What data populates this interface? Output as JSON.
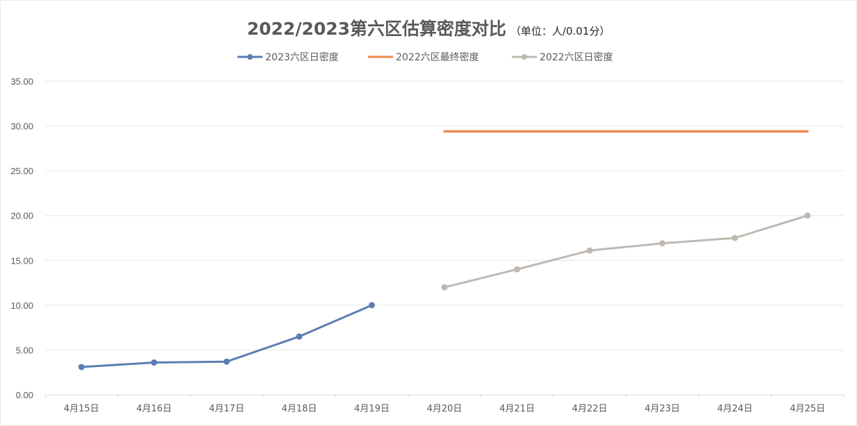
{
  "chart_data": {
    "type": "line",
    "title": "2022/2023第六区估算密度对比",
    "subtitle": "（单位：人/0.01分）",
    "categories": [
      "4月15日",
      "4月16日",
      "4月17日",
      "4月18日",
      "4月19日",
      "4月20日",
      "4月21日",
      "4月22日",
      "4月23日",
      "4月24日",
      "4月25日"
    ],
    "ylim": [
      0,
      35
    ],
    "yticks": [
      "0.00",
      "5.00",
      "10.00",
      "15.00",
      "20.00",
      "25.00",
      "30.00",
      "35.00"
    ],
    "grid": true,
    "legend_position": "top",
    "series": [
      {
        "name": "2023六区日密度",
        "color": "#5b7db2",
        "markers": true,
        "values": [
          3.1,
          3.6,
          3.7,
          6.5,
          10.0,
          null,
          null,
          null,
          null,
          null,
          null
        ]
      },
      {
        "name": "2022六区最终密度",
        "color": "#ee8b4f",
        "markers": false,
        "values": [
          null,
          null,
          null,
          null,
          null,
          29.4,
          29.4,
          29.4,
          29.4,
          29.4,
          29.4
        ]
      },
      {
        "name": "2022六区日密度",
        "color": "#bfb8b2",
        "markers": true,
        "values": [
          null,
          null,
          null,
          null,
          null,
          12.0,
          14.0,
          16.1,
          16.9,
          17.5,
          20.0
        ]
      }
    ]
  }
}
